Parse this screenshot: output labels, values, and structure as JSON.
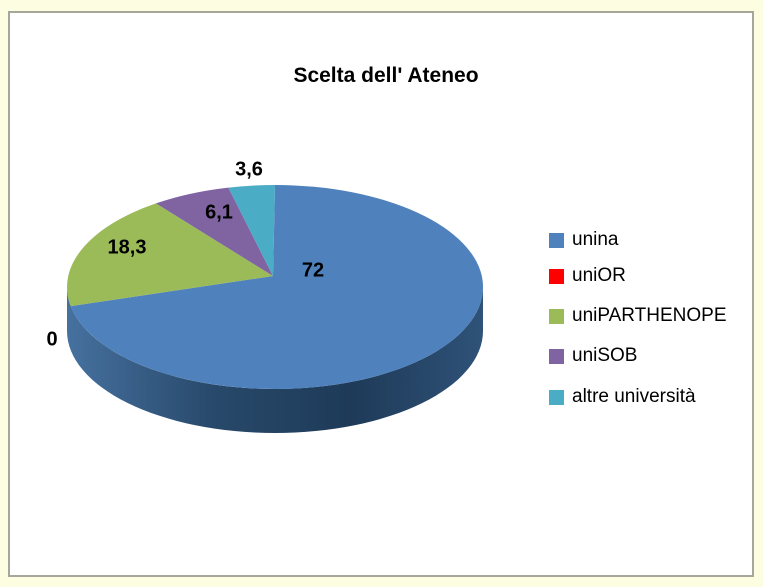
{
  "page": {
    "background_color": "#FDFDE2",
    "plot_background_color": "#FFFFFF",
    "border_color": "#A6A69B"
  },
  "chart_data": {
    "type": "pie",
    "style": "3d",
    "title": "Scelta dell' Ateneo",
    "legend_position": "right",
    "start_angle_deg": 0,
    "direction": "clockwise",
    "categories": [
      "unina",
      "uniOR",
      "uniPARTHENOPE",
      "uniSOB",
      "altre università"
    ],
    "values": [
      72,
      0,
      18.3,
      6.1,
      3.6
    ],
    "value_labels": [
      "72",
      "0",
      "18,3",
      "6,1",
      "3,6"
    ],
    "colors": [
      "#4F81BD",
      "#FF0000",
      "#9BBB59",
      "#8064A2",
      "#4BACC6"
    ],
    "label_text_color": "#000000",
    "side_shadow_colors": [
      "#46719F",
      "#28496B",
      "#1E3A58",
      "#2F5278"
    ]
  }
}
